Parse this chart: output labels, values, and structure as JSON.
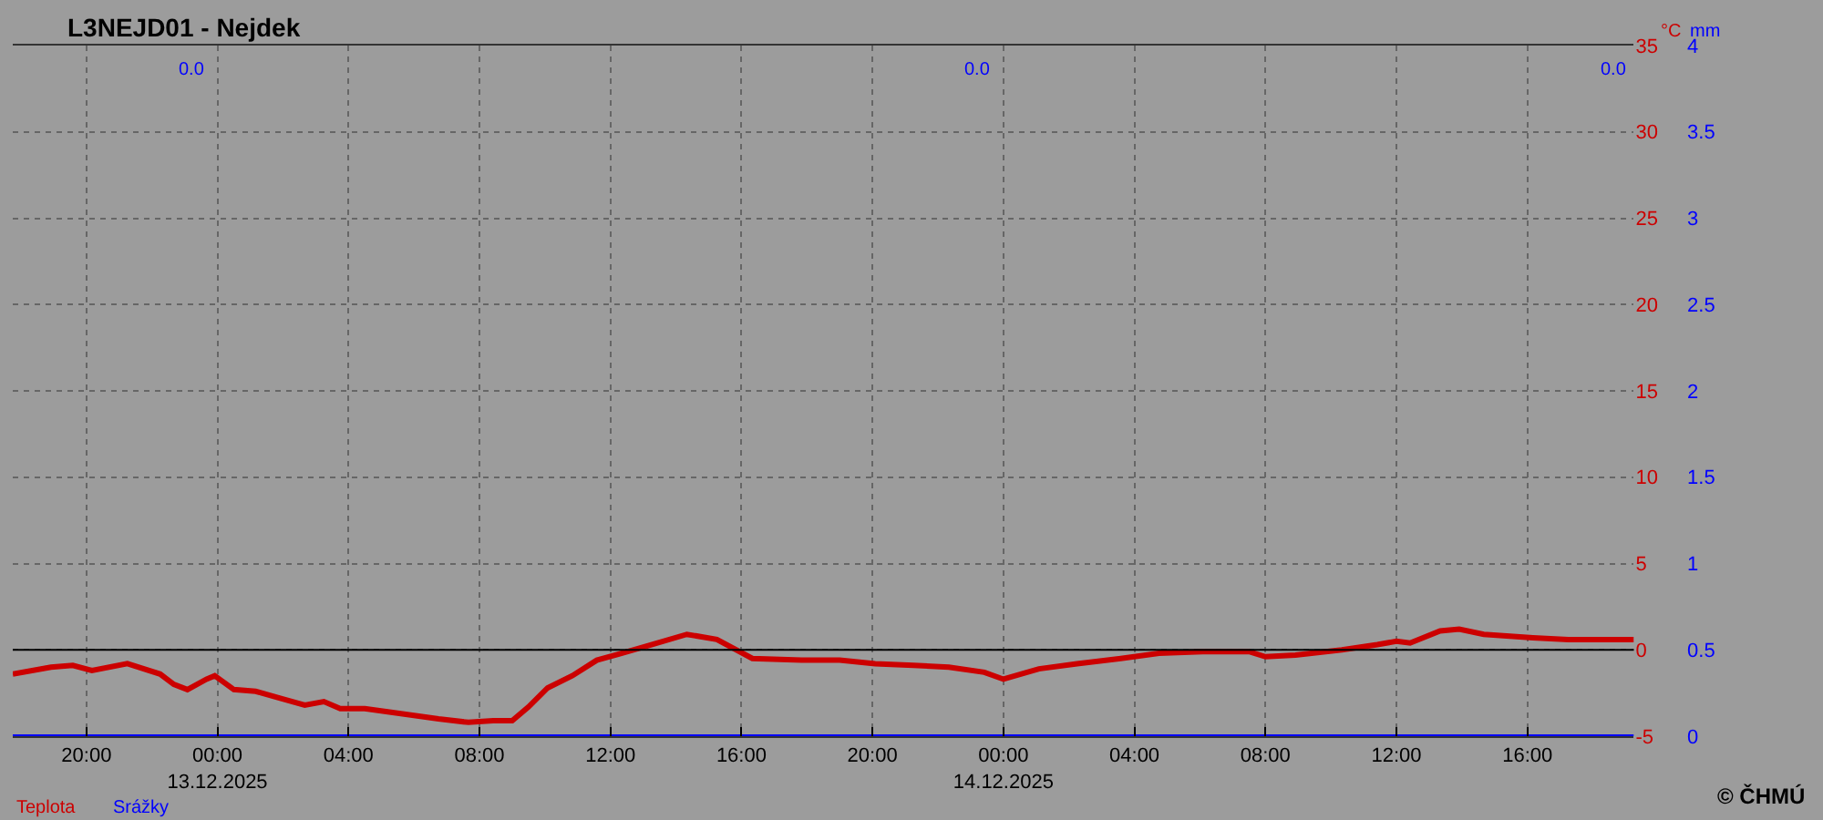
{
  "chart_data": {
    "type": "line",
    "title": "L3NEJD01 - Nejdek",
    "ylabel": "°C",
    "y2label": "mm",
    "xlim": [
      "2025-12-12T17:45",
      "2025-12-14T19:15"
    ],
    "xticks": [
      {
        "value": "2025-12-12T20:00",
        "label": "20:00"
      },
      {
        "value": "2025-12-13T00:00",
        "label": "00:00\n13.12.2025"
      },
      {
        "value": "2025-12-13T04:00",
        "label": "04:00"
      },
      {
        "value": "2025-12-13T08:00",
        "label": "08:00"
      },
      {
        "value": "2025-12-13T12:00",
        "label": "12:00"
      },
      {
        "value": "2025-12-13T16:00",
        "label": "16:00"
      },
      {
        "value": "2025-12-13T20:00",
        "label": "20:00"
      },
      {
        "value": "2025-12-14T00:00",
        "label": "00:00\n14.12.2025"
      },
      {
        "value": "2025-12-14T04:00",
        "label": "04:00"
      },
      {
        "value": "2025-12-14T08:00",
        "label": "08:00"
      },
      {
        "value": "2025-12-14T12:00",
        "label": "12:00"
      },
      {
        "value": "2025-12-14T16:00",
        "label": "16:00"
      }
    ],
    "ylim": [
      -5,
      35
    ],
    "yticks": [
      -5,
      0,
      5,
      10,
      15,
      20,
      25,
      30,
      35
    ],
    "y2lim": [
      0,
      4
    ],
    "y2ticks": [
      0,
      0.5,
      1,
      1.5,
      2,
      2.5,
      3,
      3.5,
      4
    ],
    "grid": true,
    "legend": "bottom left",
    "ref_lines": [
      {
        "axis": "y",
        "value": 0,
        "color": "#000000"
      }
    ],
    "series": [
      {
        "name": "Teplota",
        "color": "#cc0000",
        "x": [
          "2025-12-12T17:45",
          "2025-12-12T18:55",
          "2025-12-12T19:35",
          "2025-12-12T20:10",
          "2025-12-12T21:15",
          "2025-12-12T22:15",
          "2025-12-12T22:40",
          "2025-12-12T23:05",
          "2025-12-12T23:40",
          "2025-12-12T23:55",
          "2025-12-13T00:30",
          "2025-12-13T01:10",
          "2025-12-13T01:55",
          "2025-12-13T02:40",
          "2025-12-13T03:15",
          "2025-12-13T03:45",
          "2025-12-13T04:30",
          "2025-12-13T05:15",
          "2025-12-13T06:00",
          "2025-12-13T06:45",
          "2025-12-13T07:40",
          "2025-12-13T08:25",
          "2025-12-13T09:00",
          "2025-12-13T09:30",
          "2025-12-13T10:05",
          "2025-12-13T10:50",
          "2025-12-13T11:35",
          "2025-12-13T12:20",
          "2025-12-13T13:15",
          "2025-12-13T14:20",
          "2025-12-13T15:15",
          "2025-12-13T16:20",
          "2025-12-13T17:50",
          "2025-12-13T19:00",
          "2025-12-13T20:05",
          "2025-12-13T21:15",
          "2025-12-13T22:20",
          "2025-12-13T23:25",
          "2025-12-14T00:00",
          "2025-12-14T01:05",
          "2025-12-14T02:15",
          "2025-12-14T03:35",
          "2025-12-14T04:45",
          "2025-12-14T06:05",
          "2025-12-14T07:30",
          "2025-12-14T08:00",
          "2025-12-14T08:55",
          "2025-12-14T10:20",
          "2025-12-14T11:25",
          "2025-12-14T12:00",
          "2025-12-14T12:25",
          "2025-12-14T13:20",
          "2025-12-14T13:55",
          "2025-12-14T14:40",
          "2025-12-14T16:10",
          "2025-12-14T17:15",
          "2025-12-14T19:15"
        ],
        "values": [
          -1.4,
          -1.0,
          -0.9,
          -1.2,
          -0.8,
          -1.4,
          -2.0,
          -2.3,
          -1.7,
          -1.5,
          -2.3,
          -2.4,
          -2.8,
          -3.2,
          -3.0,
          -3.4,
          -3.4,
          -3.6,
          -3.8,
          -4.0,
          -4.2,
          -4.1,
          -4.1,
          -3.3,
          -2.2,
          -1.5,
          -0.6,
          -0.2,
          0.3,
          0.9,
          0.6,
          -0.5,
          -0.6,
          -0.6,
          -0.8,
          -0.9,
          -1.0,
          -1.3,
          -1.7,
          -1.1,
          -0.8,
          -0.5,
          -0.2,
          -0.1,
          -0.1,
          -0.4,
          -0.3,
          0.0,
          0.3,
          0.5,
          0.4,
          1.1,
          1.2,
          0.9,
          0.7,
          0.6,
          0.6
        ]
      },
      {
        "name": "Srážky",
        "color": "#0000ff",
        "axis": "y2",
        "x": [
          "2025-12-12T17:45",
          "2025-12-14T19:15"
        ],
        "values": [
          0,
          0
        ]
      }
    ],
    "annotations": [
      "0.0",
      "0.0",
      "0.0",
      "© ČHMÚ"
    ]
  }
}
